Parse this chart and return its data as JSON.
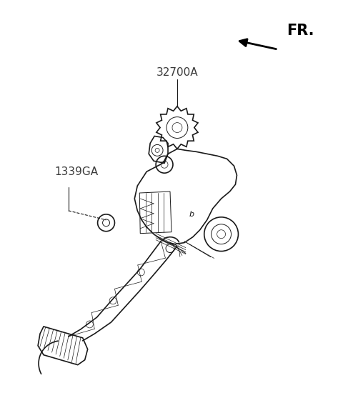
{
  "bg_color": "#ffffff",
  "line_color": "#1a1a1a",
  "label_color": "#3a3a3a",
  "fr_label": "FR.",
  "part_label_1": "32700A",
  "part_label_2": "1339GA",
  "figsize": [
    4.8,
    5.5
  ],
  "dpi": 100
}
